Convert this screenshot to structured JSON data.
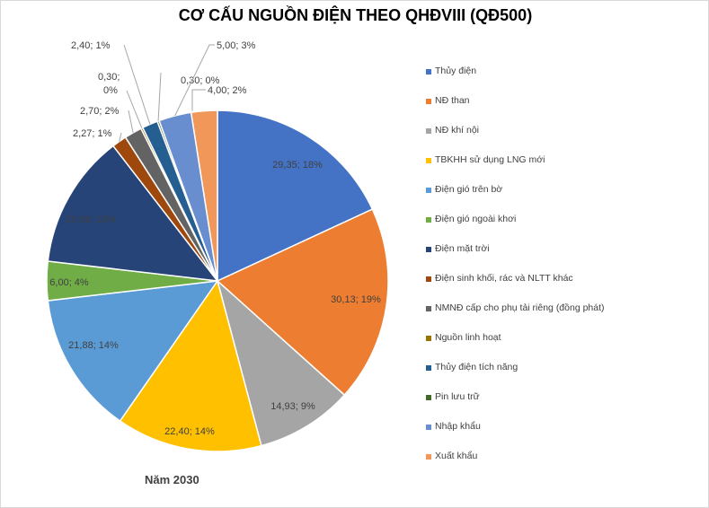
{
  "chart_data": {
    "type": "pie",
    "title": "CƠ CẤU NGUỒN ĐIỆN THEO QHĐVIII (QĐ500)",
    "xlabel": "Năm 2030",
    "legend_position": "right",
    "labels": [
      "Thủy điện",
      "NĐ than",
      "NĐ khí nội",
      "TBKHH sử dụng LNG mới",
      "Điện gió trên bờ",
      "Điện gió ngoài khơi",
      "Điện mặt trời",
      "Điện sinh khối, rác và NLTT khác",
      "NMNĐ cấp cho phụ tải riêng (đồng phát)",
      "Nguồn linh hoạt",
      "Thủy điện tích năng",
      "Pin lưu trữ",
      "Nhập khẩu",
      "Xuất khẩu"
    ],
    "values": [
      29.35,
      30.13,
      14.93,
      22.4,
      21.88,
      6.0,
      20.59,
      2.27,
      2.7,
      0.3,
      2.4,
      0.3,
      5.0,
      4.0
    ],
    "data_labels": [
      "29,35; 18%",
      "30,13; 19%",
      "14,93; 9%",
      "22,40; 14%",
      "21,88; 14%",
      "6,00; 4%",
      "20,59; 13%",
      "2,27; 1%",
      "2,70; 2%",
      "0,30; 0%",
      "2,40; 1%",
      "0,30; 0%",
      "5,00; 3%",
      "4,00; 2%"
    ],
    "colors": [
      "#4472C4",
      "#ED7D31",
      "#A5A5A5",
      "#FFC000",
      "#5B9BD5",
      "#70AD47",
      "#264478",
      "#9E480E",
      "#636363",
      "#997300",
      "#255E91",
      "#43682B",
      "#698ED0",
      "#F1975A"
    ]
  }
}
